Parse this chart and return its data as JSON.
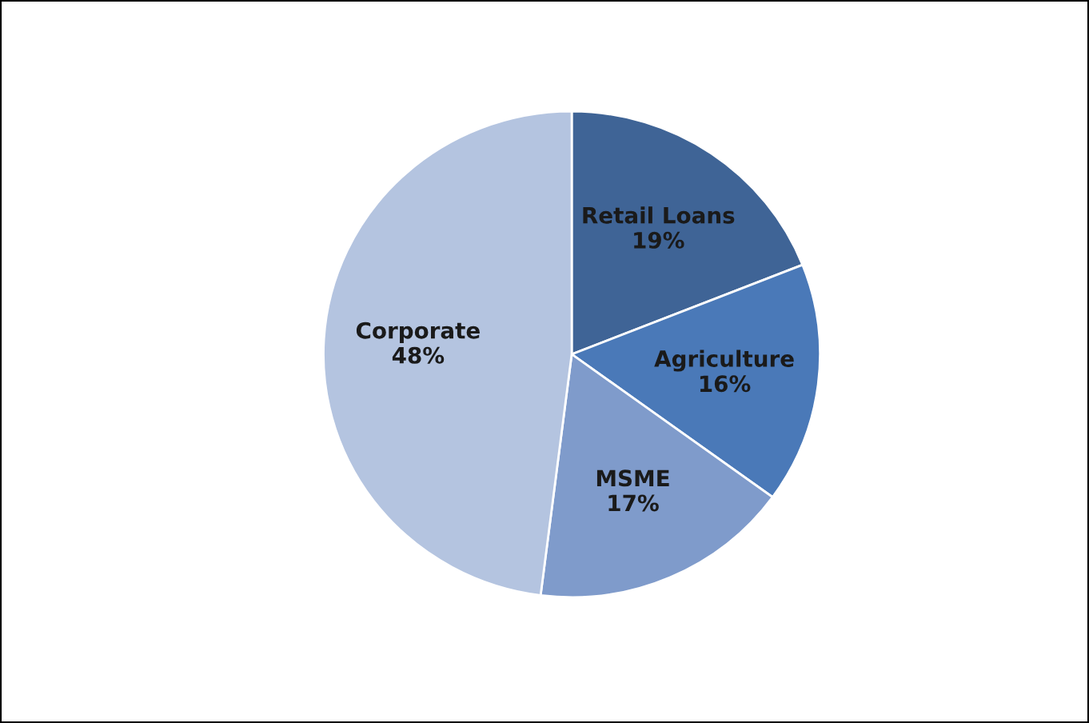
{
  "chart_data": {
    "type": "pie",
    "categories": [
      "Retail Loans",
      "Agriculture",
      "MSME",
      "Corporate"
    ],
    "values": [
      19,
      16,
      17,
      48
    ],
    "value_labels": [
      "19%",
      "16%",
      "17%",
      "48%"
    ],
    "colors": [
      "#3f6496",
      "#4a79b8",
      "#7f9bcb",
      "#b4c4e0"
    ],
    "legend": false
  }
}
